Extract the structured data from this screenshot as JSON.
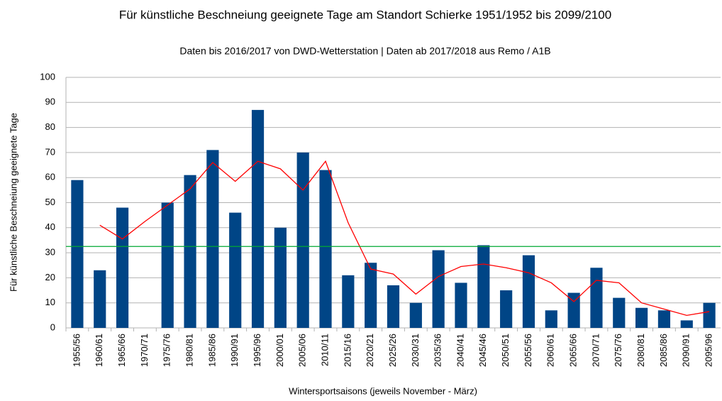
{
  "chart_data": {
    "type": "bar",
    "title": "Für künstliche Beschneiung geeignete Tage am Standort Schierke 1951/1952 bis 2099/2100",
    "subtitle": "Daten bis 2016/2017 von DWD-Wetterstation | Daten ab 2017/2018 aus Remo / A1B",
    "x_label": "Wintersportsaisons (jeweils November - März)",
    "y_label": "Für künstliche Beschneiung geeignete Tage",
    "categories": [
      "1955/56",
      "1960/61",
      "1965/66",
      "1970/71",
      "1975/76",
      "1980/81",
      "1985/86",
      "1990/91",
      "1995/96",
      "2000/01",
      "2005/06",
      "2010/11",
      "2015/16",
      "2020/21",
      "2025/26",
      "2030/31",
      "2035/36",
      "2040/41",
      "2045/46",
      "2050/51",
      "2055/56",
      "2060/61",
      "2065/66",
      "2070/71",
      "2075/76",
      "2080/81",
      "2085/86",
      "2090/91",
      "2095/96"
    ],
    "series": [
      {
        "type": "bar",
        "color": "#004586",
        "values": [
          59,
          23,
          48,
          null,
          50,
          61,
          71,
          46,
          87,
          40,
          70,
          63,
          21,
          26,
          17,
          10,
          31,
          18,
          33,
          15,
          29,
          7,
          14,
          24,
          12,
          8,
          7,
          3,
          10
        ]
      },
      {
        "type": "line",
        "color": "#ff0000",
        "values": [
          null,
          41,
          35.5,
          42.5,
          49,
          55.5,
          66,
          58.5,
          66.5,
          63.5,
          55,
          66.5,
          42,
          23.5,
          21.5,
          13.5,
          20.5,
          24.5,
          25.5,
          24,
          22,
          18,
          10.5,
          19,
          18,
          10,
          7.5,
          5,
          6.5
        ]
      }
    ],
    "reference_line": {
      "value": 32.5,
      "color": "#00a933"
    },
    "ylim": [
      0,
      100
    ],
    "yticks": [
      0,
      10,
      20,
      30,
      40,
      50,
      60,
      70,
      80,
      90,
      100
    ],
    "grid": true
  }
}
